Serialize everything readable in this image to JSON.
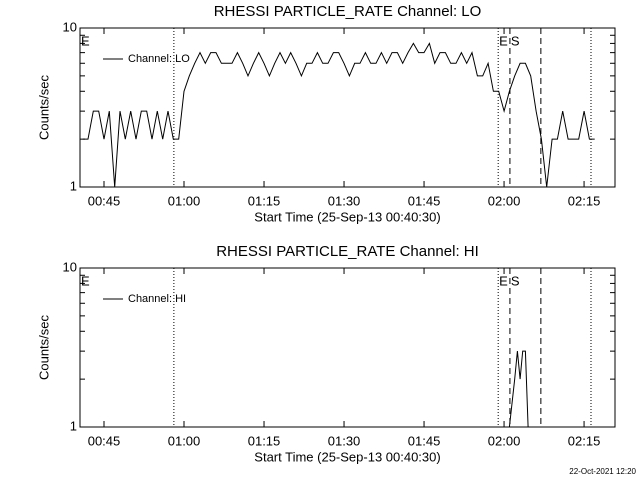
{
  "chart_data": [
    {
      "type": "line",
      "title": "RHESSI PARTICLE_RATE Channel: LO",
      "x_label": "Start Time (25-Sep-13 00:40:30)",
      "y_label": "Counts/sec",
      "log_y": true,
      "legend": "upper left",
      "xlim": [
        40.5,
        140.8
      ],
      "ylim": [
        1,
        10
      ],
      "yticks": [
        1,
        10
      ],
      "minor_yticks": [
        2,
        3,
        4,
        5,
        6,
        7,
        8,
        9
      ],
      "xticks": [
        {
          "value": 45,
          "label": "00:45"
        },
        {
          "value": 60,
          "label": "01:00"
        },
        {
          "value": 75,
          "label": "01:15"
        },
        {
          "value": 90,
          "label": "01:30"
        },
        {
          "value": 105,
          "label": "01:45"
        },
        {
          "value": 120,
          "label": "02:00"
        },
        {
          "value": 135,
          "label": "02:15"
        }
      ],
      "markers": [
        {
          "x": 58.1,
          "style": "dotted"
        },
        {
          "x": 118.9,
          "style": "dotted"
        },
        {
          "x": 121.1,
          "style": "dashed"
        },
        {
          "x": 126.9,
          "style": "dashed"
        },
        {
          "x": 136.3,
          "style": "dotted"
        }
      ],
      "annotations": [
        {
          "text": "E",
          "x": 40.5
        },
        {
          "text": "E",
          "x": 118.9
        },
        {
          "text": "S",
          "x": 121.1
        }
      ],
      "x": [
        41,
        42,
        43,
        44,
        45,
        46,
        47,
        48,
        49,
        50,
        51,
        52,
        53,
        54,
        55,
        56,
        57,
        58,
        59,
        60,
        61,
        62,
        63,
        64,
        65,
        66,
        67,
        68,
        69,
        70,
        71,
        72,
        73,
        74,
        75,
        76,
        77,
        78,
        79,
        80,
        81,
        82,
        83,
        84,
        85,
        86,
        87,
        88,
        89,
        90,
        91,
        92,
        93,
        94,
        95,
        96,
        97,
        98,
        99,
        100,
        101,
        102,
        103,
        104,
        105,
        106,
        107,
        108,
        109,
        110,
        111,
        112,
        113,
        114,
        115,
        116,
        117,
        118,
        119,
        120,
        121,
        122,
        123,
        124,
        125,
        126,
        127,
        128,
        129,
        130,
        131,
        132,
        133,
        134,
        135,
        136,
        137
      ],
      "series": [
        {
          "name": "Channel: LO",
          "color": "#000000",
          "values": [
            2,
            2,
            3,
            3,
            2,
            3,
            1,
            3,
            2,
            3,
            2,
            3,
            3,
            2,
            3,
            2,
            3,
            2,
            2,
            4,
            5,
            6,
            7,
            6,
            7,
            7,
            6,
            6,
            6,
            7,
            6,
            5,
            6,
            7,
            6,
            5,
            6,
            7,
            6,
            7,
            6,
            5,
            6,
            6,
            7,
            6,
            6,
            7,
            7,
            6,
            5,
            6,
            6,
            7,
            6,
            6,
            7,
            6,
            7,
            7,
            6,
            7,
            8,
            7,
            7,
            8,
            6,
            7,
            7,
            6,
            6,
            7,
            6,
            7,
            5,
            5,
            6,
            4,
            4,
            3,
            4,
            5,
            6,
            6,
            5,
            3,
            2,
            1,
            2,
            2,
            3,
            2,
            2,
            2,
            3,
            2,
            2
          ]
        }
      ]
    },
    {
      "type": "line",
      "title": "RHESSI PARTICLE_RATE Channel: HI",
      "x_label": "Start Time (25-Sep-13 00:40:30)",
      "y_label": "Counts/sec",
      "log_y": true,
      "legend": "upper left",
      "xlim": [
        40.5,
        140.8
      ],
      "ylim": [
        1,
        10
      ],
      "yticks": [
        1,
        10
      ],
      "minor_yticks": [
        2,
        3,
        4,
        5,
        6,
        7,
        8,
        9
      ],
      "xticks": [
        {
          "value": 45,
          "label": "00:45"
        },
        {
          "value": 60,
          "label": "01:00"
        },
        {
          "value": 75,
          "label": "01:15"
        },
        {
          "value": 90,
          "label": "01:30"
        },
        {
          "value": 105,
          "label": "01:45"
        },
        {
          "value": 120,
          "label": "02:00"
        },
        {
          "value": 135,
          "label": "02:15"
        }
      ],
      "markers": [
        {
          "x": 58.1,
          "style": "dotted"
        },
        {
          "x": 118.9,
          "style": "dotted"
        },
        {
          "x": 121.1,
          "style": "dashed"
        },
        {
          "x": 126.9,
          "style": "dashed"
        },
        {
          "x": 136.3,
          "style": "dotted"
        }
      ],
      "annotations": [
        {
          "text": "E",
          "x": 40.5
        },
        {
          "text": "E",
          "x": 118.9
        },
        {
          "text": "S",
          "x": 121.1
        }
      ],
      "x": [
        41,
        121,
        122,
        122.5,
        123,
        123.5,
        124,
        124.5,
        125,
        137
      ],
      "series": [
        {
          "name": "Channel: HI",
          "color": "#000000",
          "values": [
            1,
            1,
            2,
            3,
            2,
            3,
            3,
            1,
            1,
            1
          ]
        }
      ]
    }
  ],
  "footer": "22-Oct-2021 12:20"
}
